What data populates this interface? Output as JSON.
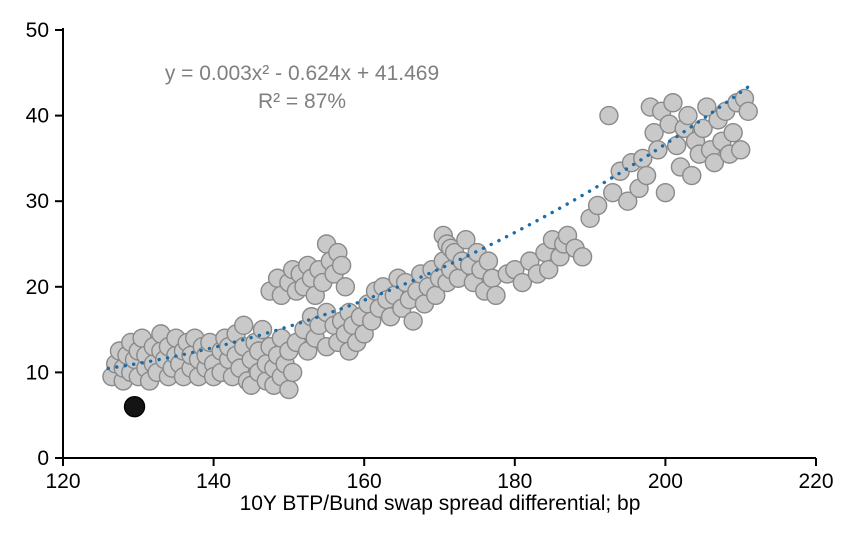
{
  "chart_data": {
    "type": "scatter",
    "title": "",
    "xlabel": "10Y BTP/Bund swap spread differential; bp",
    "ylabel": "",
    "xlim": [
      120,
      220
    ],
    "ylim": [
      0,
      50
    ],
    "x_ticks": [
      120,
      140,
      160,
      180,
      200,
      220
    ],
    "y_ticks": [
      0,
      10,
      20,
      30,
      40,
      50
    ],
    "grid": false,
    "legend": "none",
    "annotation": {
      "line1": "y = 0.003x² - 0.624x + 41.469",
      "line2": "R² = 87%",
      "color": "#7F7F7F"
    },
    "trendline": {
      "kind": "quadratic",
      "a": 0.003,
      "b": -0.624,
      "c": 41.469,
      "x_start": 126,
      "x_end": 211,
      "color": "#1B6CA8",
      "style": "dotted"
    },
    "series": [
      {
        "name": "observations",
        "marker": "circle",
        "fill": "#C9C9C9",
        "stroke": "#8A8A8A",
        "radius": 9,
        "points": [
          [
            126.5,
            9.5
          ],
          [
            127,
            11
          ],
          [
            127.5,
            12.5
          ],
          [
            128,
            9
          ],
          [
            128,
            10.5
          ],
          [
            128.5,
            12
          ],
          [
            129,
            13.5
          ],
          [
            129,
            10
          ],
          [
            129.5,
            11.5
          ],
          [
            130,
            9.5
          ],
          [
            130,
            12.5
          ],
          [
            130.5,
            14
          ],
          [
            131,
            10.5
          ],
          [
            131,
            12
          ],
          [
            131.5,
            9
          ],
          [
            132,
            11
          ],
          [
            132,
            13
          ],
          [
            132.5,
            10
          ],
          [
            133,
            12.5
          ],
          [
            133,
            14.5
          ],
          [
            133.5,
            11.5
          ],
          [
            134,
            9.5
          ],
          [
            134,
            13
          ],
          [
            134.5,
            10.5
          ],
          [
            135,
            12
          ],
          [
            135,
            14
          ],
          [
            135.5,
            11
          ],
          [
            136,
            9.5
          ],
          [
            136,
            12.5
          ],
          [
            136.5,
            13.5
          ],
          [
            137,
            10.5
          ],
          [
            137,
            12
          ],
          [
            137.5,
            14
          ],
          [
            138,
            11.5
          ],
          [
            138,
            9.5
          ],
          [
            138.5,
            13
          ],
          [
            139,
            10.5
          ],
          [
            139,
            12
          ],
          [
            139.5,
            13.5
          ],
          [
            140,
            11
          ],
          [
            140,
            9.5
          ],
          [
            141,
            12.5
          ],
          [
            141,
            10
          ],
          [
            141.5,
            14
          ],
          [
            142,
            11.5
          ],
          [
            142,
            13
          ],
          [
            142.5,
            9.5
          ],
          [
            143,
            12
          ],
          [
            143,
            14.5
          ],
          [
            143.5,
            10.5
          ],
          [
            144,
            13
          ],
          [
            144,
            15.5
          ],
          [
            144.5,
            9
          ],
          [
            145,
            11.5
          ],
          [
            145,
            8.5
          ],
          [
            145.5,
            13.5
          ],
          [
            146,
            10
          ],
          [
            146,
            12.5
          ],
          [
            146.5,
            15
          ],
          [
            147,
            9
          ],
          [
            147,
            11
          ],
          [
            147.5,
            13
          ],
          [
            148,
            8.5
          ],
          [
            148,
            10.5
          ],
          [
            148.5,
            12
          ],
          [
            149,
            9.5
          ],
          [
            149,
            14
          ],
          [
            149.5,
            11
          ],
          [
            150,
            8
          ],
          [
            150,
            12.5
          ],
          [
            150.5,
            10
          ],
          [
            147.5,
            19.5
          ],
          [
            148.5,
            21
          ],
          [
            149,
            19
          ],
          [
            150,
            20.5
          ],
          [
            150.5,
            22
          ],
          [
            151,
            19.5
          ],
          [
            151.5,
            21.5
          ],
          [
            152,
            20
          ],
          [
            152.5,
            22.5
          ],
          [
            153,
            21
          ],
          [
            153.5,
            19
          ],
          [
            154,
            22
          ],
          [
            154.5,
            20.5
          ],
          [
            155,
            25
          ],
          [
            155.5,
            23
          ],
          [
            156,
            21.5
          ],
          [
            156.5,
            24
          ],
          [
            157,
            22.5
          ],
          [
            157.5,
            20
          ],
          [
            151,
            13.5
          ],
          [
            152,
            15
          ],
          [
            152.5,
            12.5
          ],
          [
            153,
            16.5
          ],
          [
            153.5,
            14
          ],
          [
            154,
            15.5
          ],
          [
            155,
            13
          ],
          [
            155,
            17
          ],
          [
            156,
            15.5
          ],
          [
            156.5,
            13.5
          ],
          [
            157,
            16
          ],
          [
            157.5,
            14.5
          ],
          [
            158,
            17
          ],
          [
            158,
            12.5
          ],
          [
            158.5,
            15.5
          ],
          [
            159,
            13.5
          ],
          [
            159.5,
            16.5
          ],
          [
            160,
            14.5
          ],
          [
            160.5,
            18
          ],
          [
            161,
            16
          ],
          [
            161.5,
            19.5
          ],
          [
            162,
            17.5
          ],
          [
            162.5,
            20
          ],
          [
            163,
            18.5
          ],
          [
            163.5,
            16.5
          ],
          [
            164,
            19
          ],
          [
            164.5,
            21
          ],
          [
            165,
            17.5
          ],
          [
            165.5,
            20.5
          ],
          [
            166,
            18.5
          ],
          [
            166.5,
            16
          ],
          [
            167,
            19.5
          ],
          [
            167.5,
            21.5
          ],
          [
            168,
            18
          ],
          [
            168.5,
            20
          ],
          [
            169,
            22
          ],
          [
            169.5,
            19
          ],
          [
            170,
            21
          ],
          [
            170.5,
            23
          ],
          [
            170.5,
            26
          ],
          [
            171,
            20.5
          ],
          [
            171,
            25
          ],
          [
            171.5,
            22
          ],
          [
            171.5,
            24.5
          ],
          [
            172,
            24
          ],
          [
            172.5,
            21
          ],
          [
            173,
            23
          ],
          [
            173.5,
            25.5
          ],
          [
            174,
            22.5
          ],
          [
            174.5,
            20.5
          ],
          [
            175,
            24
          ],
          [
            175.5,
            22
          ],
          [
            176,
            19.5
          ],
          [
            176.5,
            23
          ],
          [
            177,
            21
          ],
          [
            177.5,
            19
          ],
          [
            179,
            21.5
          ],
          [
            180,
            22
          ],
          [
            181,
            20.5
          ],
          [
            182,
            23
          ],
          [
            183,
            21.5
          ],
          [
            184,
            24
          ],
          [
            184.5,
            22
          ],
          [
            185,
            25.5
          ],
          [
            186,
            23.5
          ],
          [
            186.5,
            25
          ],
          [
            187,
            26
          ],
          [
            188,
            24.5
          ],
          [
            189,
            23.5
          ],
          [
            190,
            28
          ],
          [
            191,
            29.5
          ],
          [
            192.5,
            40
          ],
          [
            193,
            31
          ],
          [
            194,
            33.5
          ],
          [
            195,
            30
          ],
          [
            195.5,
            34.5
          ],
          [
            196.5,
            31.5
          ],
          [
            197,
            35
          ],
          [
            197.5,
            33
          ],
          [
            198,
            41
          ],
          [
            198.5,
            38
          ],
          [
            199,
            36
          ],
          [
            199.5,
            40.5
          ],
          [
            200,
            31
          ],
          [
            200.5,
            39
          ],
          [
            201,
            41.5
          ],
          [
            201.5,
            36.5
          ],
          [
            202,
            34
          ],
          [
            202.5,
            38.5
          ],
          [
            203,
            40
          ],
          [
            203.5,
            33
          ],
          [
            204,
            37
          ],
          [
            204.5,
            35.5
          ],
          [
            205,
            38.5
          ],
          [
            205.5,
            41
          ],
          [
            206,
            36
          ],
          [
            206.5,
            34.5
          ],
          [
            207,
            39.5
          ],
          [
            207.5,
            37
          ],
          [
            208,
            40.5
          ],
          [
            208.5,
            35.5
          ],
          [
            209,
            38
          ],
          [
            209.5,
            41.5
          ],
          [
            210,
            36
          ],
          [
            210.5,
            42
          ],
          [
            211,
            40.5
          ]
        ]
      },
      {
        "name": "highlighted-point",
        "marker": "circle",
        "fill": "#141414",
        "stroke": "#000000",
        "radius": 10,
        "points": [
          [
            129.5,
            6
          ]
        ]
      }
    ],
    "axis_color": "#000000",
    "tick_label_color": "#000000"
  }
}
